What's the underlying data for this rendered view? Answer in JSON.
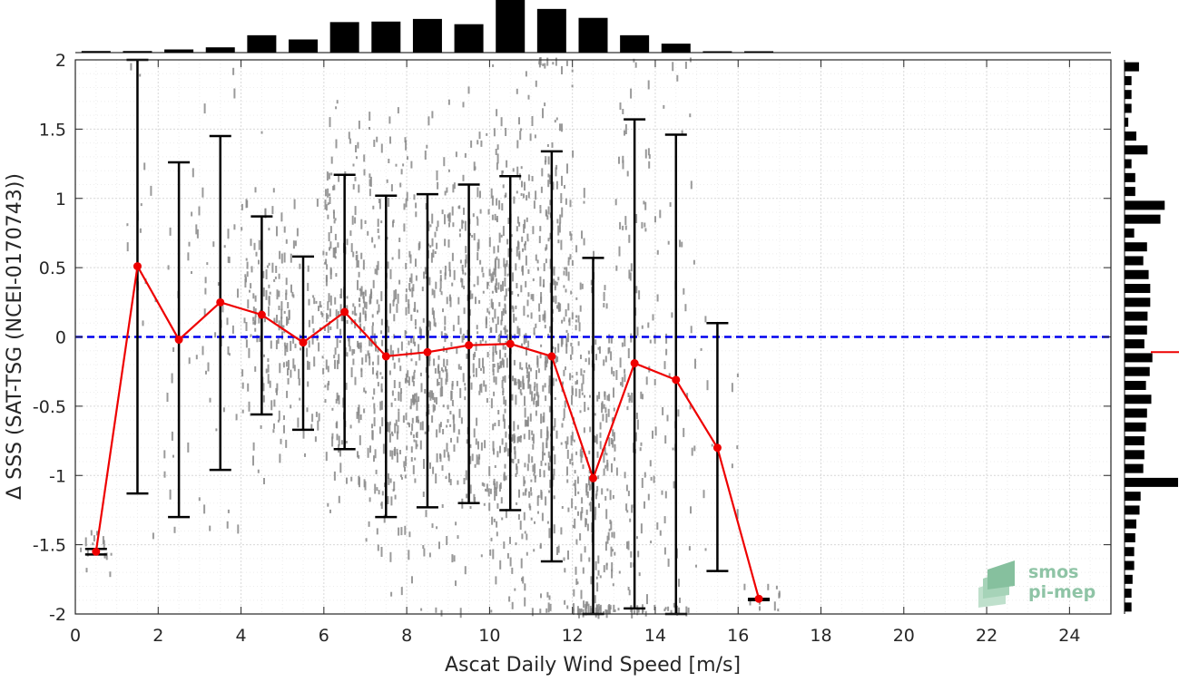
{
  "chart_data": {
    "type": "scatter",
    "xlabel": "Ascat Daily Wind Speed [m/s]",
    "ylabel": "Δ SSS (SAT-TSG (NCEI-0170743))",
    "xlim": [
      0,
      25
    ],
    "ylim": [
      -2,
      2
    ],
    "xticks": [
      0,
      2,
      4,
      6,
      8,
      10,
      12,
      14,
      16,
      18,
      20,
      22,
      24
    ],
    "yticks": [
      -2,
      -1.5,
      -1,
      -0.5,
      0,
      0.5,
      1,
      1.5,
      2
    ],
    "xtick_labels": [
      "0",
      "2",
      "4",
      "6",
      "8",
      "10",
      "12",
      "14",
      "16",
      "18",
      "20",
      "22",
      "24"
    ],
    "ytick_labels": [
      "-2",
      "-1.5",
      "-1",
      "-0.5",
      "0",
      "0.5",
      "1",
      "1.5",
      "2"
    ],
    "grid": true,
    "zero_line": {
      "y": 0,
      "color": "#0000ee",
      "style": "dashed"
    },
    "bin_stats": {
      "color": "#ee0000",
      "x": [
        0.5,
        1.5,
        2.5,
        3.5,
        4.5,
        5.5,
        6.5,
        7.5,
        8.5,
        9.5,
        10.5,
        11.5,
        12.5,
        13.5,
        14.5,
        15.5,
        16.5
      ],
      "mean": [
        -1.55,
        0.51,
        -0.02,
        0.25,
        0.16,
        -0.04,
        0.18,
        -0.14,
        -0.11,
        -0.06,
        -0.05,
        -0.14,
        -1.02,
        -0.19,
        -0.31,
        -0.8,
        -1.89
      ],
      "upper": [
        -1.53,
        2.0,
        1.26,
        1.45,
        0.87,
        0.58,
        1.17,
        1.02,
        1.03,
        1.1,
        1.16,
        1.34,
        0.57,
        1.57,
        1.46,
        0.1,
        -1.89
      ],
      "lower": [
        -1.57,
        -1.13,
        -1.3,
        -0.96,
        -0.56,
        -0.67,
        -0.81,
        -1.3,
        -1.23,
        -1.2,
        -1.25,
        -1.62,
        -2.0,
        -1.96,
        -2.0,
        -1.69,
        -1.9
      ]
    },
    "scatter_color": "#888888",
    "top_histogram": {
      "x": [
        0.5,
        1.5,
        2.5,
        3.5,
        4.5,
        5.5,
        6.5,
        7.5,
        8.5,
        9.5,
        10.5,
        11.5,
        12.5,
        13.5,
        14.5,
        15.5,
        16.5
      ],
      "values": [
        0.03,
        0.03,
        0.06,
        0.1,
        0.33,
        0.25,
        0.58,
        0.59,
        0.64,
        0.54,
        1.0,
        0.83,
        0.66,
        0.33,
        0.17,
        0.02,
        0.02
      ]
    },
    "side_histogram": {
      "y": [
        1.95,
        1.85,
        1.75,
        1.65,
        1.55,
        1.45,
        1.35,
        1.25,
        1.15,
        1.05,
        0.95,
        0.85,
        0.75,
        0.65,
        0.55,
        0.45,
        0.35,
        0.25,
        0.15,
        0.05,
        -0.05,
        -0.15,
        -0.25,
        -0.35,
        -0.45,
        -0.55,
        -0.65,
        -0.75,
        -0.85,
        -0.95,
        -1.05,
        -1.15,
        -1.25,
        -1.35,
        -1.45,
        -1.55,
        -1.65,
        -1.75,
        -1.85,
        -1.95
      ],
      "values": [
        0.27,
        0.13,
        0.13,
        0.13,
        0.07,
        0.22,
        0.43,
        0.13,
        0.2,
        0.2,
        0.75,
        0.67,
        0.18,
        0.42,
        0.35,
        0.45,
        0.48,
        0.48,
        0.43,
        0.42,
        0.37,
        0.52,
        0.47,
        0.4,
        0.5,
        0.42,
        0.4,
        0.37,
        0.37,
        0.35,
        1.0,
        0.3,
        0.28,
        0.22,
        0.2,
        0.18,
        0.18,
        0.15,
        0.13,
        0.13
      ]
    },
    "side_mean_marker": {
      "y": -0.11,
      "color": "#ee0000"
    }
  },
  "logo": {
    "line1": "smos",
    "line2": "pi-mep"
  }
}
